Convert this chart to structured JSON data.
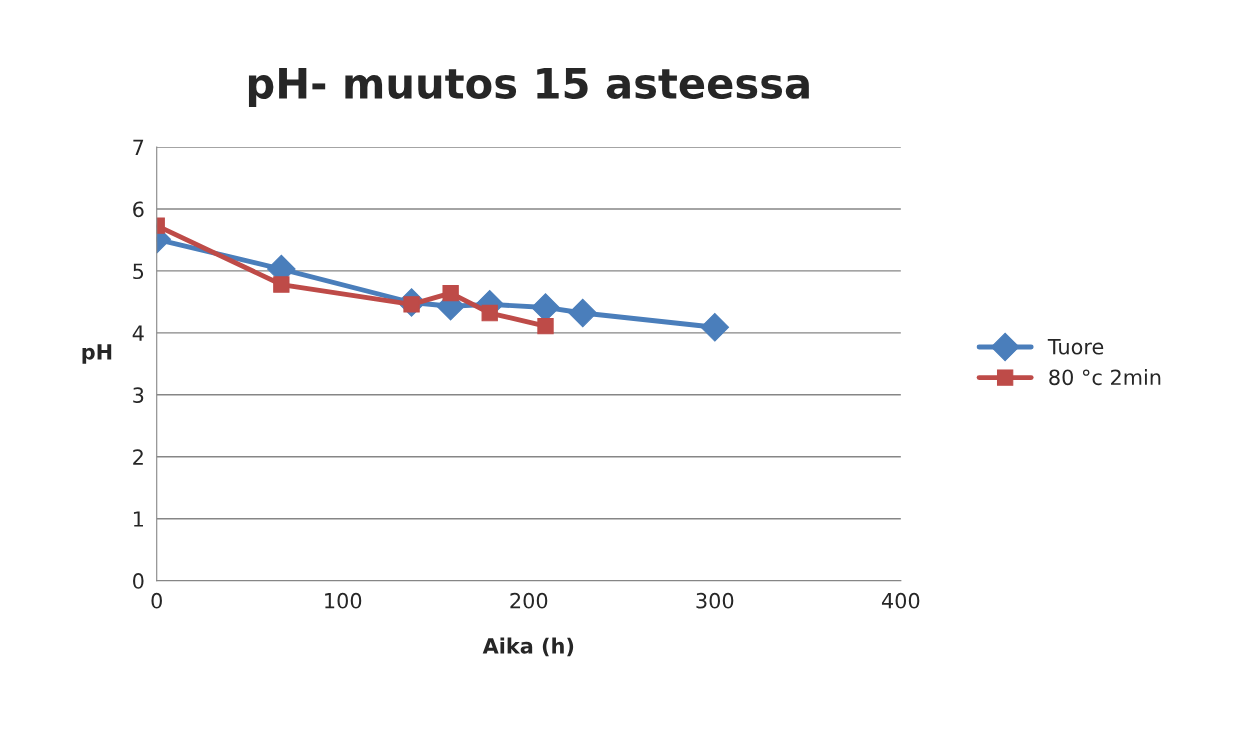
{
  "chart_data": {
    "type": "line",
    "title": "pH- muutos 15 asteessa",
    "xlabel": "Aika (h)",
    "ylabel": "pH",
    "xlim": [
      0,
      400
    ],
    "xticks": [
      0,
      100,
      200,
      300,
      400
    ],
    "ylim": [
      0,
      7
    ],
    "yticks": [
      0,
      1,
      2,
      3,
      4,
      5,
      6,
      7
    ],
    "grid": "y",
    "legend": "right",
    "series": [
      {
        "name": "Tuore",
        "color": "#4a7ebb",
        "marker": "diamond",
        "x": [
          0,
          67,
          137,
          158,
          179,
          209,
          229,
          300
        ],
        "values": [
          5.51,
          5.03,
          4.49,
          4.43,
          4.46,
          4.41,
          4.32,
          4.09
        ]
      },
      {
        "name": "80 °c 2min",
        "color": "#be4b48",
        "marker": "square",
        "x": [
          0,
          67,
          137,
          158,
          179,
          209
        ],
        "values": [
          5.73,
          4.78,
          4.46,
          4.64,
          4.32,
          4.11
        ]
      }
    ]
  }
}
